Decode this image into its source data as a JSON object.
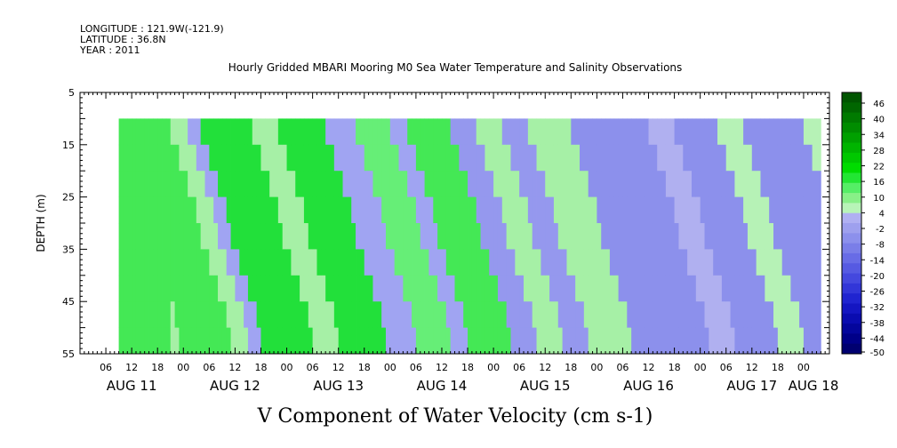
{
  "header": {
    "longitude": "LONGITUDE : 121.9W(-121.9)",
    "latitude": "LATITUDE : 36.8N",
    "year": "YEAR : 2011"
  },
  "chart_data": {
    "type": "heatmap",
    "title": "Hourly Gridded MBARI Mooring M0 Sea Water Temperature and Salinity Observations",
    "xlabel": "V Component of Water Velocity (cm s-1)",
    "ylabel": "DEPTH (m)",
    "y_axis": {
      "range": [
        5,
        55
      ],
      "inverted": true,
      "tick_labels": [
        "5",
        "15",
        "25",
        "35",
        "45",
        "55"
      ],
      "minor_step": 1
    },
    "x_axis": {
      "hour_tick_labels": [
        "06",
        "12",
        "18",
        "00",
        "06",
        "12",
        "18",
        "00",
        "06",
        "12",
        "18",
        "00",
        "06",
        "12",
        "18",
        "00",
        "06",
        "12",
        "18",
        "00",
        "06",
        "12",
        "18",
        "00",
        "06",
        "12",
        "18",
        "00"
      ],
      "day_labels": [
        "AUG 11",
        "AUG 12",
        "AUG 13",
        "AUG 14",
        "AUG 15",
        "AUG 16",
        "AUG 17",
        "AUG 18"
      ],
      "start": "2011-08-11 00:00",
      "end": "2011-08-18 06:00"
    },
    "data_extent": {
      "start": "2011-08-11 09:00",
      "end": "2011-08-18 04:00",
      "depth_min": 10,
      "depth_max": 55
    },
    "colorbar": {
      "levels": [
        48,
        46,
        44,
        42,
        40,
        38,
        36,
        34,
        32,
        30,
        28,
        26,
        24,
        22,
        20,
        18,
        16,
        14,
        12,
        10,
        8,
        6,
        4,
        2,
        0,
        -2,
        -4,
        -6,
        -8,
        -10,
        -12,
        -14,
        -16,
        -18,
        -20,
        -22,
        -24,
        -26,
        -28,
        -30,
        -32,
        -34,
        -36,
        -38,
        -40,
        -42,
        -44,
        -46,
        -48,
        -50
      ],
      "tick_labels": [
        "46",
        "40",
        "34",
        "28",
        "22",
        "16",
        "10",
        "4",
        "-2",
        "-8",
        "-14",
        "-20",
        "-26",
        "-32",
        "-38",
        "-44",
        "-50"
      ],
      "colors": [
        "#003300",
        "#004400",
        "#005500",
        "#006600",
        "#007700",
        "#008800",
        "#009900",
        "#00aa00",
        "#00bb00",
        "#00cc00",
        "#00dd00",
        "#00e600",
        "#11ee22",
        "#33ee44",
        "#55f066",
        "#77f288",
        "#99f4aa",
        "#aaeebb",
        "#9999ee",
        "#8888ee",
        "#7777ee",
        "#6666ee",
        "#5555ee",
        "#4444ee",
        "#3333ee",
        "#2222dd",
        "#1111cc",
        "#0000bb",
        "#0000aa",
        "#000099",
        "#000088",
        "#000077"
      ]
    },
    "values_grid_description_bands": [
      {
        "from": "2011-08-11 09:00",
        "to": "2011-08-11 21:00",
        "value": 12
      },
      {
        "from": "2011-08-11 21:00",
        "to": "2011-08-12 01:00",
        "value": 4
      },
      {
        "from": "2011-08-12 01:00",
        "to": "2011-08-12 04:00",
        "value": -4
      },
      {
        "from": "2011-08-12 04:00",
        "to": "2011-08-12 16:00",
        "value": 14
      },
      {
        "from": "2011-08-12 16:00",
        "to": "2011-08-12 22:00",
        "value": 4
      },
      {
        "from": "2011-08-12 22:00",
        "to": "2011-08-13 09:00",
        "value": 14
      },
      {
        "from": "2011-08-13 09:00",
        "to": "2011-08-13 16:00",
        "value": -4
      },
      {
        "from": "2011-08-13 16:00",
        "to": "2011-08-14 00:00",
        "value": 8
      },
      {
        "from": "2011-08-14 00:00",
        "to": "2011-08-14 04:00",
        "value": -4
      },
      {
        "from": "2011-08-14 04:00",
        "to": "2011-08-14 14:00",
        "value": 12
      },
      {
        "from": "2011-08-14 14:00",
        "to": "2011-08-14 20:00",
        "value": -6
      },
      {
        "from": "2011-08-14 20:00",
        "to": "2011-08-15 02:00",
        "value": 4
      },
      {
        "from": "2011-08-15 02:00",
        "to": "2011-08-15 08:00",
        "value": -6
      },
      {
        "from": "2011-08-15 08:00",
        "to": "2011-08-15 18:00",
        "value": 4
      },
      {
        "from": "2011-08-15 18:00",
        "to": "2011-08-16 12:00",
        "value": -8
      },
      {
        "from": "2011-08-16 12:00",
        "to": "2011-08-16 18:00",
        "value": -2
      },
      {
        "from": "2011-08-16 18:00",
        "to": "2011-08-17 04:00",
        "value": -8
      },
      {
        "from": "2011-08-17 04:00",
        "to": "2011-08-17 10:00",
        "value": 2
      },
      {
        "from": "2011-08-17 10:00",
        "to": "2011-08-18 00:00",
        "value": -8
      },
      {
        "from": "2011-08-18 00:00",
        "to": "2011-08-18 04:00",
        "value": 2
      }
    ]
  }
}
